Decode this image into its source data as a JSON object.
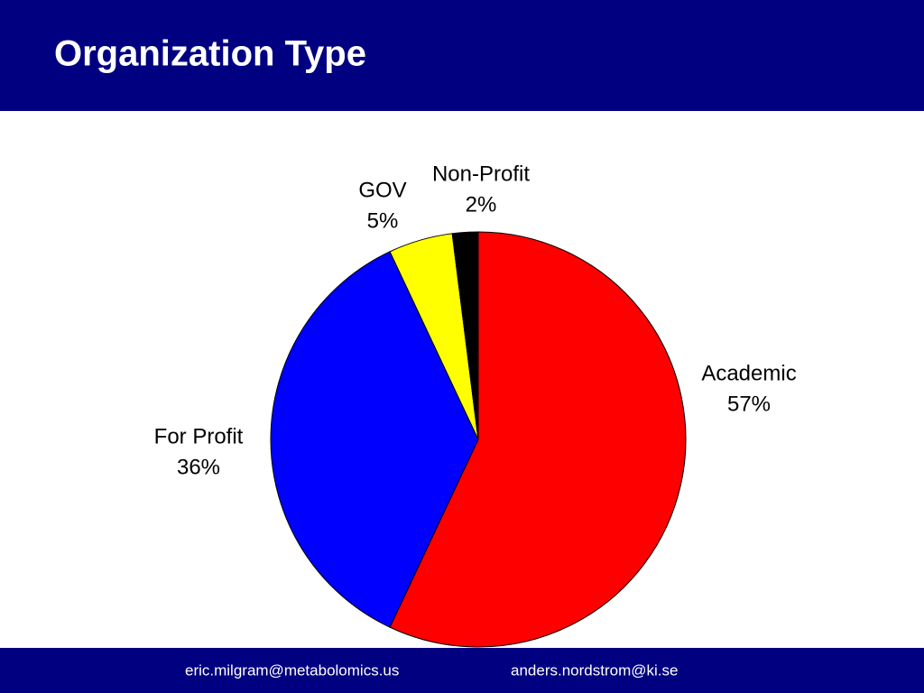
{
  "chart_data": {
    "type": "pie",
    "title": "Organization Type",
    "categories": [
      "Academic",
      "For Profit",
      "GOV",
      "Non-Profit"
    ],
    "values": [
      57,
      36,
      5,
      2
    ],
    "value_labels": [
      "57%",
      "36%",
      "5%",
      "2%"
    ],
    "colors": [
      "#ff0000",
      "#0000ff",
      "#ffff00",
      "#000000"
    ]
  },
  "footer": [
    "eric.milgram@metabolomics.us",
    "anders.nordstrom@ki.se"
  ]
}
